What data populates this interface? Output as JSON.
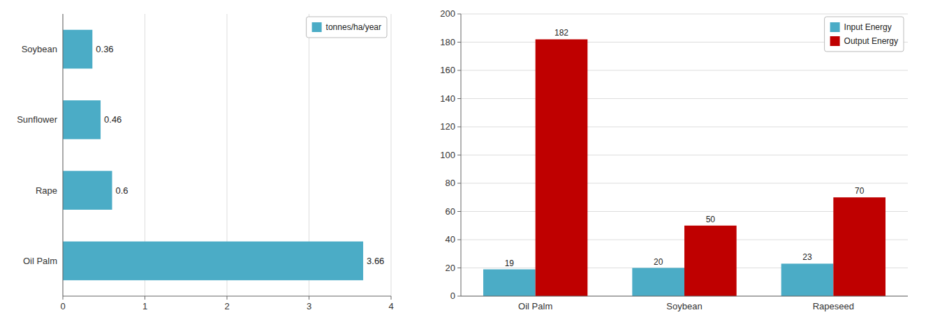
{
  "chart_data": [
    {
      "type": "bar",
      "orientation": "horizontal",
      "categories": [
        "Oil Palm",
        "Rape",
        "Sunflower",
        "Soybean"
      ],
      "series": [
        {
          "name": "tonnes/ha/year",
          "color": "#4BACC6",
          "values": [
            3.66,
            0.6,
            0.46,
            0.36
          ]
        }
      ],
      "xlim": [
        0,
        4
      ],
      "xticks": [
        0,
        1,
        2,
        3,
        4
      ],
      "grid": true,
      "legend": "upper right",
      "data_labels": true
    },
    {
      "type": "bar",
      "categories": [
        "Oil Palm",
        "Soybean",
        "Rapeseed"
      ],
      "series": [
        {
          "name": "Input Energy",
          "color": "#4BACC6",
          "values": [
            19,
            20,
            23
          ]
        },
        {
          "name": "Output Energy",
          "color": "#BF0000",
          "values": [
            182,
            50,
            70
          ]
        }
      ],
      "ylim": [
        0,
        200
      ],
      "yticks": [
        0,
        20,
        40,
        60,
        80,
        100,
        120,
        140,
        160,
        180,
        200
      ],
      "grid": true,
      "legend": "upper right",
      "data_labels": true
    }
  ]
}
